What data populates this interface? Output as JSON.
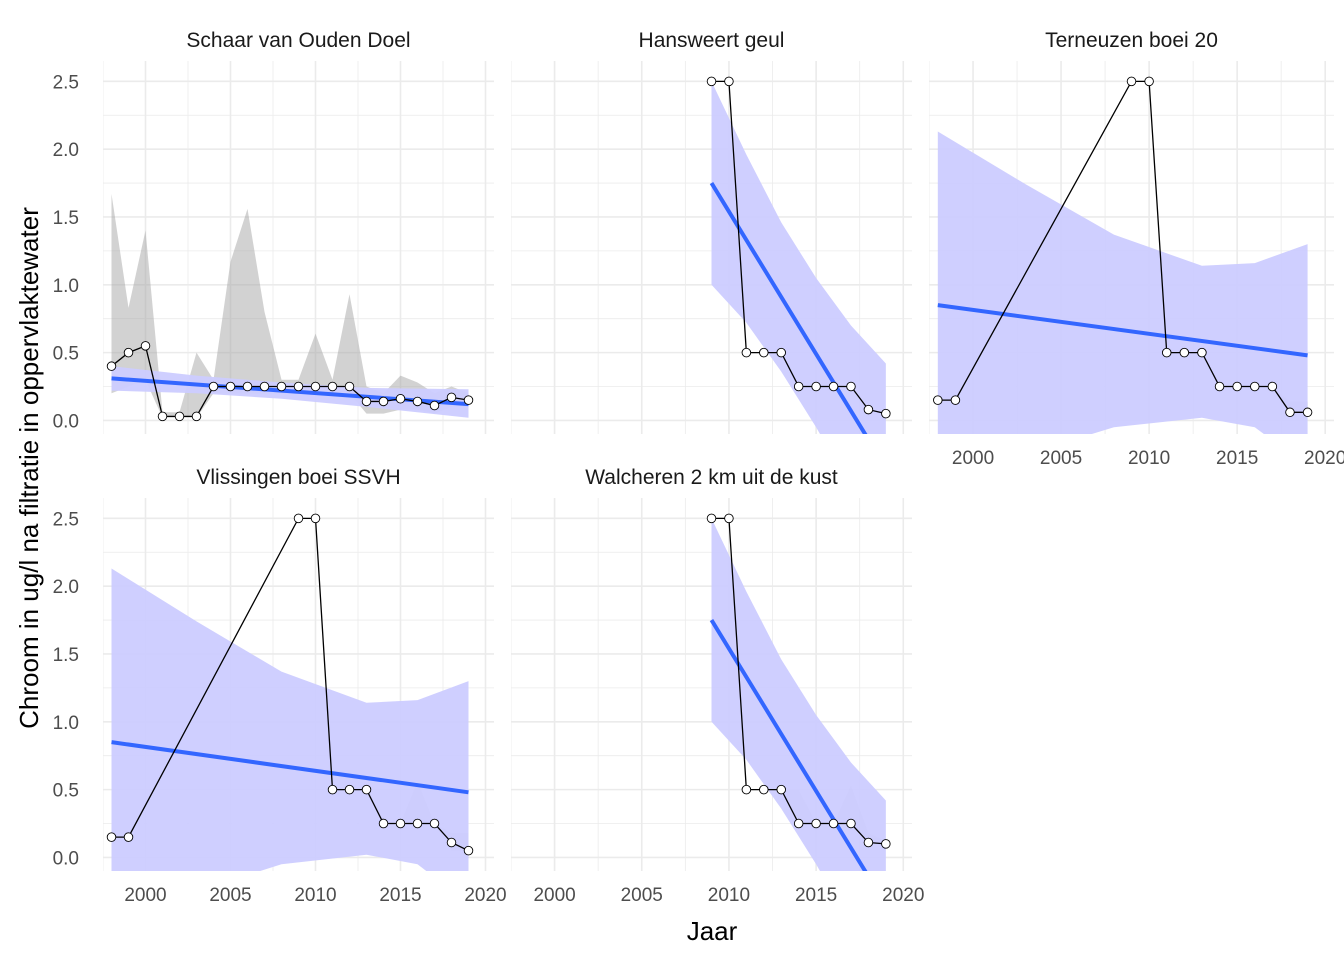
{
  "chart_data": {
    "type": "line",
    "xlabel": "Jaar",
    "ylabel": "Chroom in ug/l na filtratie in oppervlaktewater",
    "xlim": [
      1997.5,
      2020.5
    ],
    "ylim": [
      -0.1,
      2.65
    ],
    "x_ticks": [
      "2000",
      "2005",
      "2010",
      "2015",
      "2020"
    ],
    "y_ticks": [
      "0.0",
      "0.5",
      "1.0",
      "1.5",
      "2.0",
      "2.5"
    ],
    "x_tick_values": [
      2000,
      2005,
      2010,
      2015,
      2020
    ],
    "y_tick_values": [
      0,
      0.5,
      1.0,
      1.5,
      2.0,
      2.5
    ],
    "colors": {
      "trend_line": "#3366ff",
      "confidence_band": "#ccccff",
      "range_band": "#a6a6a6",
      "series_line": "#000000",
      "point_fill": "#ffffff",
      "grid": "#ebebeb"
    },
    "panels": [
      {
        "title": "Schaar van Ouden Doel",
        "x": [
          1998,
          1999,
          2000,
          2001,
          2002,
          2003,
          2004,
          2005,
          2006,
          2007,
          2008,
          2009,
          2010,
          2011,
          2012,
          2013,
          2014,
          2015,
          2016,
          2017,
          2018,
          2019
        ],
        "y": [
          0.4,
          0.5,
          0.55,
          0.03,
          0.03,
          0.03,
          0.25,
          0.25,
          0.25,
          0.25,
          0.25,
          0.25,
          0.25,
          0.25,
          0.25,
          0.14,
          0.14,
          0.16,
          0.14,
          0.11,
          0.17,
          0.15
        ],
        "range_low": [
          0.2,
          0.25,
          0.3,
          0.02,
          0.02,
          0.02,
          0.2,
          0.2,
          0.2,
          0.2,
          0.2,
          0.2,
          0.2,
          0.2,
          0.2,
          0.05,
          0.05,
          0.08,
          0.08,
          0.05,
          0.1,
          0.1
        ],
        "range_high": [
          1.67,
          0.83,
          1.4,
          0.06,
          0.06,
          0.5,
          0.3,
          1.17,
          1.56,
          0.8,
          0.3,
          0.3,
          0.64,
          0.3,
          0.93,
          0.25,
          0.2,
          0.33,
          0.28,
          0.2,
          0.25,
          0.2
        ],
        "trend": {
          "x0": 1998,
          "y0": 0.31,
          "x1": 2019,
          "y1": 0.12
        },
        "ci_x": [
          1998,
          2003,
          2008,
          2013,
          2019
        ],
        "ci_low": [
          0.22,
          0.2,
          0.16,
          0.1,
          0.02
        ],
        "ci_high": [
          0.4,
          0.33,
          0.28,
          0.24,
          0.23
        ]
      },
      {
        "title": "Hansweert geul",
        "x": [
          2009,
          2010,
          2011,
          2012,
          2013,
          2014,
          2015,
          2016,
          2017,
          2018,
          2019
        ],
        "y": [
          2.5,
          2.5,
          0.5,
          0.5,
          0.5,
          0.25,
          0.25,
          0.25,
          0.25,
          0.08,
          0.05
        ],
        "range_low": [
          2.5,
          2.5,
          0.5,
          0.5,
          0.5,
          0.25,
          0.25,
          0.25,
          0.25,
          0.08,
          0.05
        ],
        "range_high": [
          2.5,
          2.5,
          0.5,
          0.5,
          0.5,
          0.25,
          0.25,
          0.25,
          0.25,
          0.08,
          0.05
        ],
        "trend": {
          "x0": 2009,
          "y0": 1.75,
          "x1": 2019,
          "y1": -0.35
        },
        "ci_x": [
          2009,
          2011,
          2013,
          2015,
          2017,
          2019
        ],
        "ci_low": [
          1.0,
          0.72,
          0.36,
          -0.05,
          -0.5,
          -1.0
        ],
        "ci_high": [
          2.5,
          1.96,
          1.46,
          1.05,
          0.7,
          0.42
        ]
      },
      {
        "title": "Terneuzen boei 20",
        "x": [
          1998,
          1999,
          2009,
          2010,
          2011,
          2012,
          2013,
          2014,
          2015,
          2016,
          2017,
          2018,
          2019
        ],
        "y": [
          0.15,
          0.15,
          2.5,
          2.5,
          0.5,
          0.5,
          0.5,
          0.25,
          0.25,
          0.25,
          0.25,
          0.06,
          0.06
        ],
        "range_low": [
          0.15,
          0.15,
          2.5,
          2.5,
          0.5,
          0.5,
          0.5,
          0.25,
          0.25,
          0.25,
          0.25,
          0.05,
          0.05
        ],
        "range_high": [
          0.15,
          0.15,
          2.5,
          2.5,
          0.5,
          0.5,
          0.5,
          0.25,
          0.25,
          0.25,
          0.25,
          0.14,
          0.14
        ],
        "trend": {
          "x0": 1998,
          "y0": 0.85,
          "x1": 2019,
          "y1": 0.48
        },
        "ci_x": [
          1998,
          2003,
          2008,
          2013,
          2016,
          2019
        ],
        "ci_low": [
          -0.4,
          -0.25,
          -0.05,
          0.02,
          -0.05,
          -0.34
        ],
        "ci_high": [
          2.13,
          1.74,
          1.37,
          1.14,
          1.16,
          1.3
        ]
      },
      {
        "title": "Vlissingen boei SSVH",
        "x": [
          1998,
          1999,
          2009,
          2010,
          2011,
          2012,
          2013,
          2014,
          2015,
          2016,
          2017,
          2018,
          2019
        ],
        "y": [
          0.15,
          0.15,
          2.5,
          2.5,
          0.5,
          0.5,
          0.5,
          0.25,
          0.25,
          0.25,
          0.25,
          0.11,
          0.05
        ],
        "range_low": [
          0.15,
          0.15,
          2.5,
          2.5,
          0.5,
          0.5,
          0.5,
          0.25,
          0.25,
          0.25,
          0.25,
          0.05,
          0.05
        ],
        "range_high": [
          0.15,
          0.15,
          2.5,
          2.5,
          0.5,
          0.5,
          0.5,
          0.25,
          0.25,
          0.56,
          0.25,
          0.18,
          0.18
        ],
        "trend": {
          "x0": 1998,
          "y0": 0.85,
          "x1": 2019,
          "y1": 0.48
        },
        "ci_x": [
          1998,
          2003,
          2008,
          2013,
          2016,
          2019
        ],
        "ci_low": [
          -0.4,
          -0.25,
          -0.05,
          0.02,
          -0.05,
          -0.34
        ],
        "ci_high": [
          2.13,
          1.74,
          1.37,
          1.14,
          1.16,
          1.3
        ]
      },
      {
        "title": "Walcheren 2 km uit de kust",
        "x": [
          2009,
          2010,
          2011,
          2012,
          2013,
          2014,
          2015,
          2016,
          2017,
          2018,
          2019
        ],
        "y": [
          2.5,
          2.5,
          0.5,
          0.5,
          0.5,
          0.25,
          0.25,
          0.25,
          0.25,
          0.11,
          0.1
        ],
        "range_low": [
          2.5,
          2.5,
          0.5,
          0.5,
          0.5,
          0.25,
          0.25,
          0.25,
          0.25,
          0.11,
          0.08
        ],
        "range_high": [
          2.5,
          2.5,
          0.5,
          0.5,
          0.5,
          0.5,
          0.25,
          0.25,
          0.53,
          0.18,
          0.12
        ],
        "trend": {
          "x0": 2009,
          "y0": 1.75,
          "x1": 2019,
          "y1": -0.35
        },
        "ci_x": [
          2009,
          2011,
          2013,
          2015,
          2017,
          2019
        ],
        "ci_low": [
          1.0,
          0.72,
          0.36,
          -0.05,
          -0.5,
          -1.0
        ],
        "ci_high": [
          2.5,
          1.96,
          1.46,
          1.05,
          0.7,
          0.42
        ]
      }
    ]
  }
}
